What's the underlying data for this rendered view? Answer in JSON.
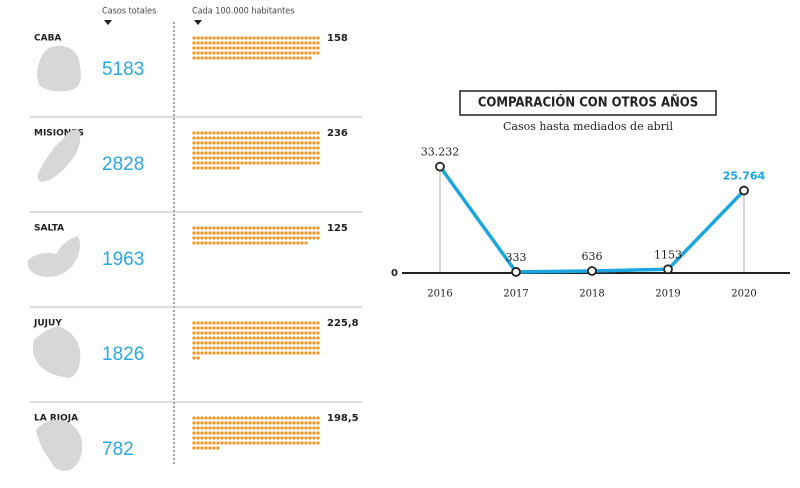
{
  "chart_data": [
    {
      "type": "dots",
      "categories": [
        "CABA",
        "MISIONES",
        "SALTA",
        "JUJUY",
        "LA RIOJA"
      ],
      "series": [
        {
          "name": "Casos totales",
          "color": "#29a9e0",
          "values": [
            5183,
            2828,
            1963,
            1826,
            782
          ]
        },
        {
          "name": "Cada 100.000 habitantes",
          "color": "#f7941d",
          "values": [
            158,
            236,
            125,
            225.8,
            198.5
          ],
          "value_labels": [
            "158",
            "236",
            "125",
            "225,8",
            "198,5"
          ]
        }
      ]
    },
    {
      "type": "line",
      "title": "COMPARACIÓN CON OTROS AÑOS",
      "subtitle": "Casos hasta mediados de abril",
      "categories": [
        "2016",
        "2017",
        "2018",
        "2019",
        "2020"
      ],
      "values": [
        33232,
        333,
        636,
        1153,
        25764
      ],
      "value_labels": [
        "33.232",
        "333",
        "636",
        "1153",
        "25.764"
      ],
      "color": "#1aa6e0",
      "ylim": [
        0,
        40000
      ],
      "yticks": [
        0
      ]
    }
  ]
}
